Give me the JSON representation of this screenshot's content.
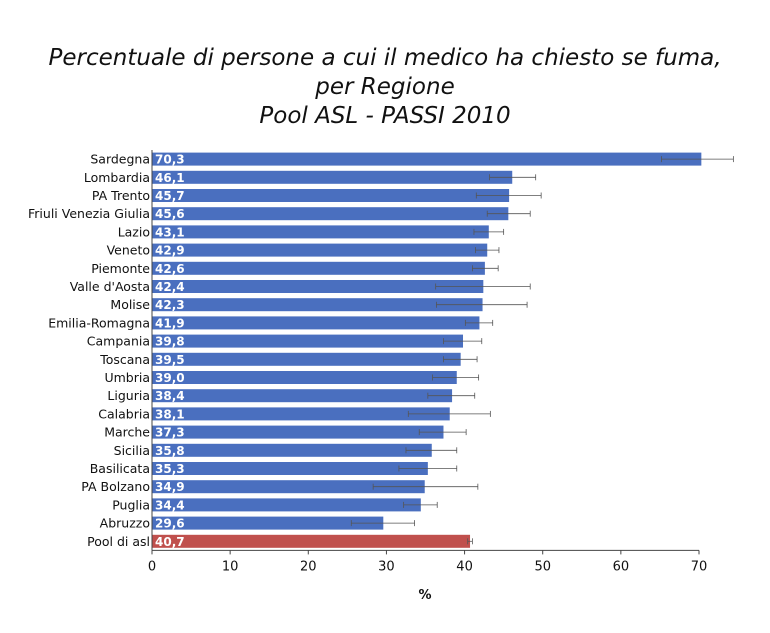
{
  "title_lines": [
    "Percentuale di persone a cui il medico ha chiesto se fuma,",
    "per Regione",
    "Pool ASL - PASSI 2010"
  ],
  "chart_data": {
    "type": "bar",
    "orientation": "horizontal",
    "title": "Percentuale di persone a cui il medico ha chiesto se fuma, per Regione Pool ASL - PASSI 2010",
    "xlabel": "%",
    "ylabel": "",
    "xlim": [
      0,
      70
    ],
    "xticks": [
      0,
      10,
      20,
      30,
      40,
      50,
      60,
      70
    ],
    "grid": false,
    "bar_color": "#4a6fbf",
    "highlight_color": "#c0504d",
    "categories": [
      "Sardegna",
      "Lombardia",
      "PA Trento",
      "Friuli Venezia Giulia",
      "Lazio",
      "Veneto",
      "Piemonte",
      "Valle d'Aosta",
      "Molise",
      "Emilia-Romagna",
      "Campania",
      "Toscana",
      "Umbria",
      "Liguria",
      "Calabria",
      "Marche",
      "Sicilia",
      "Basilicata",
      "PA Bolzano",
      "Puglia",
      "Abruzzo",
      "Pool di asl"
    ],
    "value_labels": [
      "70,3",
      "46,1",
      "45,7",
      "45,6",
      "43,1",
      "42,9",
      "42,6",
      "42,4",
      "42,3",
      "41,9",
      "39,8",
      "39,5",
      "39,0",
      "38,4",
      "38,1",
      "37,3",
      "35,8",
      "35,3",
      "34,9",
      "34,4",
      "29,6",
      "40,7"
    ],
    "values": [
      70.3,
      46.1,
      45.7,
      45.6,
      43.1,
      42.9,
      42.6,
      42.4,
      42.3,
      41.9,
      39.8,
      39.5,
      39.0,
      38.4,
      38.1,
      37.3,
      35.8,
      35.3,
      34.9,
      34.4,
      29.6,
      40.7
    ],
    "ci_low": [
      65.2,
      43.2,
      41.5,
      42.9,
      41.2,
      41.4,
      41.0,
      36.3,
      36.4,
      40.1,
      37.3,
      37.3,
      35.9,
      35.3,
      32.8,
      34.2,
      32.5,
      31.6,
      28.3,
      32.2,
      25.5,
      40.4
    ],
    "ci_high": [
      74.4,
      49.1,
      49.8,
      48.4,
      45.0,
      44.4,
      44.3,
      48.4,
      48.0,
      43.6,
      42.2,
      41.6,
      41.8,
      41.3,
      43.3,
      40.2,
      39.0,
      39.0,
      41.7,
      36.5,
      33.6,
      41.0
    ],
    "highlight_index": 21
  }
}
